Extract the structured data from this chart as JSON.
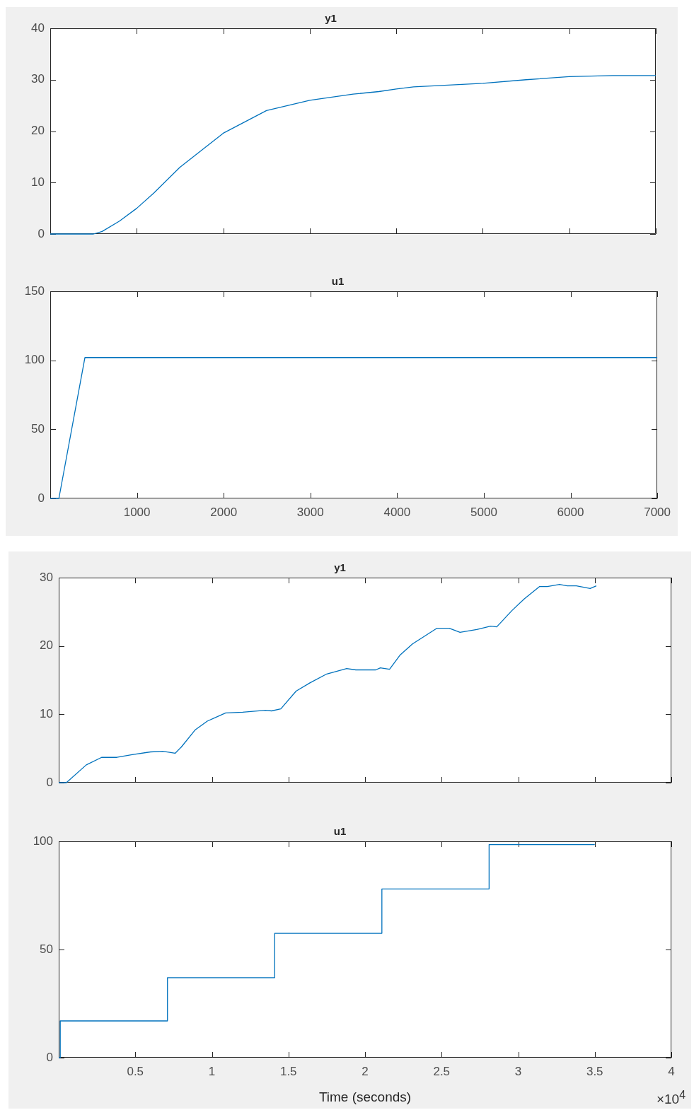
{
  "chart_data": [
    {
      "type": "line",
      "title": "y1",
      "color": "#0072bd",
      "marker": "none",
      "x": [
        0,
        500,
        600,
        800,
        1000,
        1200,
        1500,
        2000,
        2500,
        3000,
        3500,
        3800,
        4000,
        4200,
        5000,
        5500,
        6000,
        6500,
        7000
      ],
      "values": [
        0,
        0,
        0.5,
        2.5,
        5,
        8,
        13,
        19.6,
        24,
        26,
        27.2,
        27.7,
        28.2,
        28.6,
        29.3,
        30,
        30.6,
        30.8,
        30.8
      ],
      "xlim": [
        0,
        7000
      ],
      "xticks": [
        1000,
        2000,
        3000,
        4000,
        5000,
        6000,
        7000
      ],
      "ylim": [
        0,
        40
      ],
      "yticks": [
        0,
        10,
        20,
        30,
        40
      ],
      "tick_labels": "y"
    },
    {
      "type": "line",
      "title": "u1",
      "color": "#0072bd",
      "marker": "none",
      "x": [
        0,
        100,
        400,
        7000
      ],
      "values": [
        0,
        0,
        102,
        102
      ],
      "xlim": [
        0,
        7000
      ],
      "xticks": [
        1000,
        2000,
        3000,
        4000,
        5000,
        6000,
        7000
      ],
      "ylim": [
        0,
        150
      ],
      "yticks": [
        0,
        50,
        100,
        150
      ]
    },
    {
      "type": "line",
      "title": "y1",
      "color": "#0072bd",
      "marker": "none",
      "x": [
        0,
        0.05,
        0.18,
        0.28,
        0.38,
        0.48,
        0.6,
        0.68,
        0.76,
        0.8,
        0.89,
        0.97,
        1.09,
        1.2,
        1.35,
        1.39,
        1.45,
        1.55,
        1.64,
        1.75,
        1.88,
        1.94,
        2.07,
        2.1,
        2.16,
        2.23,
        2.31,
        2.47,
        2.55,
        2.62,
        2.73,
        2.82,
        2.86,
        2.96,
        3.04,
        3.14,
        3.19,
        3.27,
        3.32,
        3.38,
        3.47,
        3.51
      ],
      "values": [
        0,
        0,
        2.6,
        3.7,
        3.7,
        4.1,
        4.5,
        4.6,
        4.3,
        5.2,
        7.7,
        9,
        10.2,
        10.3,
        10.6,
        10.5,
        10.8,
        13.4,
        14.6,
        15.9,
        16.7,
        16.5,
        16.5,
        16.8,
        16.6,
        18.7,
        20.3,
        22.6,
        22.6,
        22,
        22.4,
        22.9,
        22.8,
        25.2,
        26.9,
        28.7,
        28.7,
        29,
        28.8,
        28.8,
        28.4,
        28.8
      ],
      "xlim": [
        0,
        4
      ],
      "xticks": [
        0.5,
        1,
        1.5,
        2,
        2.5,
        3,
        3.5,
        4
      ],
      "ylim": [
        0,
        30
      ],
      "yticks": [
        0,
        10,
        20,
        30
      ],
      "tick_labels": "y"
    },
    {
      "type": "step",
      "title": "u1",
      "xlabel": "Time (seconds)",
      "color": "#0072bd",
      "marker": "none",
      "x": [
        0,
        0.01,
        0.71,
        1.41,
        2.11,
        2.81,
        3.5
      ],
      "values": [
        0,
        17,
        37,
        57.5,
        78,
        98.5,
        98.5
      ],
      "xlim": [
        0,
        4
      ],
      "xticks": [
        0.5,
        1,
        1.5,
        2,
        2.5,
        3,
        3.5,
        4
      ],
      "ylim": [
        0,
        100
      ],
      "yticks": [
        0,
        50,
        100
      ],
      "annotations": [
        "×10$^{4}$"
      ]
    }
  ]
}
